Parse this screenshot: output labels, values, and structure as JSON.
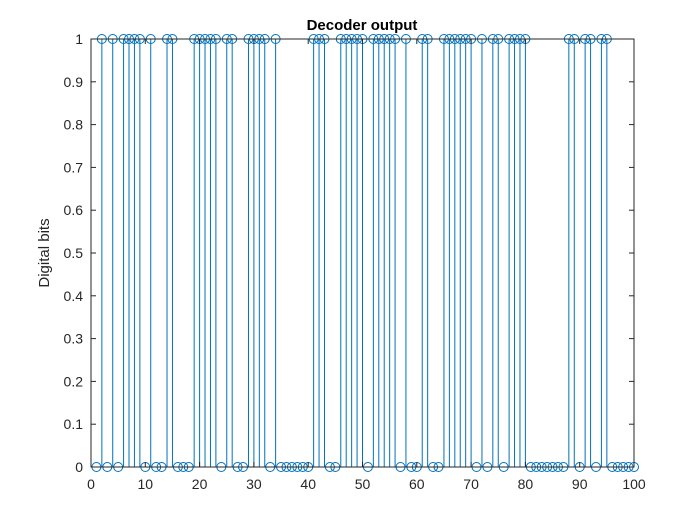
{
  "chart_data": {
    "type": "stem",
    "title": "Decoder output",
    "xlabel": "",
    "ylabel": "Digital bits",
    "xlim": [
      0,
      100
    ],
    "ylim": [
      0,
      1
    ],
    "xticks": [
      "0",
      "10",
      "20",
      "30",
      "40",
      "50",
      "60",
      "70",
      "80",
      "90",
      "100"
    ],
    "yticks": [
      "0",
      "0.1",
      "0.2",
      "0.3",
      "0.4",
      "0.5",
      "0.6",
      "0.7",
      "0.8",
      "0.9",
      "1"
    ],
    "grid": false,
    "x": [
      1,
      2,
      3,
      4,
      5,
      6,
      7,
      8,
      9,
      10,
      11,
      12,
      13,
      14,
      15,
      16,
      17,
      18,
      19,
      20,
      21,
      22,
      23,
      24,
      25,
      26,
      27,
      28,
      29,
      30,
      31,
      32,
      33,
      34,
      35,
      36,
      37,
      38,
      39,
      40,
      41,
      42,
      43,
      44,
      45,
      46,
      47,
      48,
      49,
      50,
      51,
      52,
      53,
      54,
      55,
      56,
      57,
      58,
      59,
      60,
      61,
      62,
      63,
      64,
      65,
      66,
      67,
      68,
      69,
      70,
      71,
      72,
      73,
      74,
      75,
      76,
      77,
      78,
      79,
      80,
      81,
      82,
      83,
      84,
      85,
      86,
      87,
      88,
      89,
      90,
      91,
      92,
      93,
      94,
      95,
      96,
      97,
      98,
      99,
      100
    ],
    "values": [
      0,
      1,
      0,
      1,
      0,
      1,
      1,
      1,
      1,
      0,
      1,
      0,
      0,
      1,
      1,
      0,
      0,
      0,
      1,
      1,
      1,
      1,
      1,
      0,
      1,
      1,
      0,
      0,
      1,
      1,
      1,
      1,
      0,
      1,
      0,
      0,
      0,
      0,
      0,
      0,
      1,
      1,
      1,
      0,
      0,
      1,
      1,
      1,
      1,
      1,
      0,
      1,
      1,
      1,
      1,
      1,
      0,
      1,
      0,
      0,
      1,
      1,
      0,
      0,
      1,
      1,
      1,
      1,
      1,
      1,
      0,
      1,
      0,
      1,
      1,
      0,
      1,
      1,
      1,
      1,
      0,
      0,
      0,
      0,
      0,
      0,
      0,
      1,
      1,
      0,
      1,
      1,
      0,
      1,
      1,
      0,
      0,
      0,
      0,
      0
    ],
    "colors": {
      "stem": "#0072bd",
      "axis": "#262626"
    }
  }
}
